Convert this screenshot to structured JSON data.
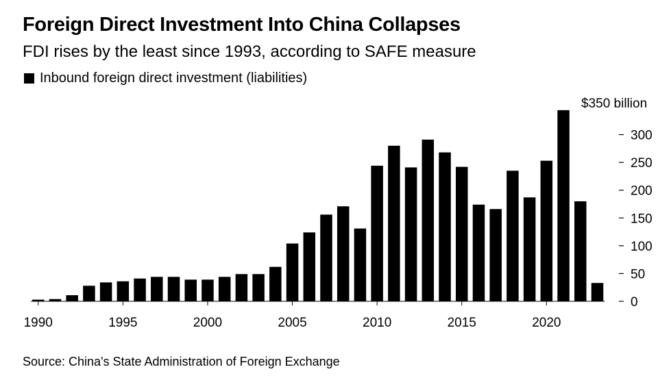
{
  "title": "Foreign Direct Investment Into China Collapses",
  "subtitle": "FDI rises by the least since 1993, according to SAFE measure",
  "source": "Source: China's State Administration of Foreign Exchange",
  "colors": {
    "bar": "#000000",
    "background": "#ffffff"
  },
  "chart_data": {
    "type": "bar",
    "x": [
      1990,
      1991,
      1992,
      1993,
      1994,
      1995,
      1996,
      1997,
      1998,
      1999,
      2000,
      2001,
      2002,
      2003,
      2004,
      2005,
      2006,
      2007,
      2008,
      2009,
      2010,
      2011,
      2012,
      2013,
      2014,
      2015,
      2016,
      2017,
      2018,
      2019,
      2020,
      2021,
      2022,
      2023
    ],
    "series": [
      {
        "name": "Inbound foreign direct investment (liabilities)",
        "values": [
          3,
          4,
          11,
          28,
          34,
          36,
          41,
          44,
          44,
          39,
          39,
          44,
          49,
          49,
          62,
          104,
          124,
          156,
          171,
          131,
          244,
          280,
          241,
          291,
          268,
          242,
          174,
          166,
          235,
          187,
          253,
          344,
          180,
          33
        ]
      }
    ],
    "y_top_label": "$350 billion",
    "yticks": [
      0,
      50,
      100,
      150,
      200,
      250,
      300
    ],
    "xticks": [
      1990,
      1995,
      2000,
      2005,
      2010,
      2015,
      2020
    ],
    "ylim": [
      0,
      350
    ],
    "y_axis_position": "right",
    "grid": false,
    "legend_position": "top-left"
  }
}
